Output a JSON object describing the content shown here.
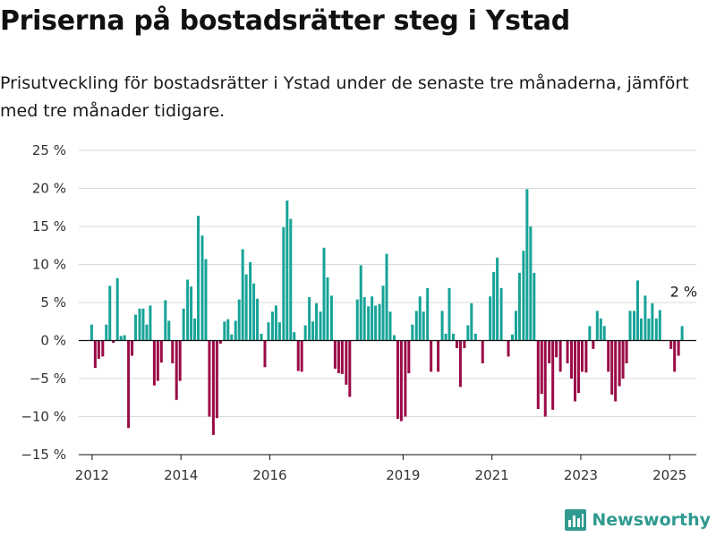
{
  "header": {
    "title": "Priserna på bostadsrätter steg i Ystad",
    "subtitle": "Prisutveckling för bostadsrätter i Ystad under de senaste tre månaderna, jämfört med tre månader tidigare."
  },
  "brand": {
    "name": "Newsworthy",
    "icon": "bar-chart-logo-icon",
    "color": "#2f9a8f"
  },
  "chart_data": {
    "type": "bar",
    "ylim": [
      -15,
      25
    ],
    "yticks": [
      -15,
      -10,
      -5,
      0,
      5,
      10,
      15,
      20,
      25
    ],
    "ytick_labels": [
      "−15 %",
      "−10 %",
      "−5 %",
      "0 %",
      "5 %",
      "10 %",
      "15 %",
      "20 %",
      "25 %"
    ],
    "xlim": [
      2011.7,
      2025.6
    ],
    "xticks": [
      2012,
      2014,
      2016,
      2019,
      2021,
      2023,
      2025
    ],
    "xtick_labels": [
      "2012",
      "2014",
      "2016",
      "2019",
      "2021",
      "2023",
      "2025"
    ],
    "grid": true,
    "colors": {
      "positive": "#17a398",
      "negative": "#9b0a47"
    },
    "annotation": {
      "text": "2 %",
      "x": 2025.33,
      "y": 2
    },
    "series": [
      {
        "values": [
          [
            2011.99,
            2.1
          ],
          [
            2012.07,
            -3.6
          ],
          [
            2012.15,
            -2.4
          ],
          [
            2012.24,
            -2.1
          ],
          [
            2012.32,
            2.1
          ],
          [
            2012.4,
            7.2
          ],
          [
            2012.48,
            -0.3
          ],
          [
            2012.57,
            8.2
          ],
          [
            2012.65,
            0.6
          ],
          [
            2012.73,
            0.7
          ],
          [
            2012.82,
            -11.5
          ],
          [
            2012.9,
            -2.0
          ],
          [
            2012.98,
            3.4
          ],
          [
            2013.07,
            4.2
          ],
          [
            2013.15,
            4.2
          ],
          [
            2013.23,
            2.1
          ],
          [
            2013.31,
            4.6
          ],
          [
            2013.4,
            -5.9
          ],
          [
            2013.48,
            -5.3
          ],
          [
            2013.56,
            -2.9
          ],
          [
            2013.65,
            5.3
          ],
          [
            2013.73,
            2.6
          ],
          [
            2013.81,
            -3.0
          ],
          [
            2013.9,
            -7.8
          ],
          [
            2013.98,
            -5.3
          ],
          [
            2014.06,
            4.2
          ],
          [
            2014.15,
            8.0
          ],
          [
            2014.23,
            7.1
          ],
          [
            2014.31,
            2.9
          ],
          [
            2014.39,
            16.4
          ],
          [
            2014.48,
            13.8
          ],
          [
            2014.56,
            10.7
          ],
          [
            2014.64,
            -10.0
          ],
          [
            2014.73,
            -12.4
          ],
          [
            2014.81,
            -10.2
          ],
          [
            2014.89,
            -0.4
          ],
          [
            2014.98,
            2.5
          ],
          [
            2015.06,
            2.8
          ],
          [
            2015.14,
            0.8
          ],
          [
            2015.23,
            2.6
          ],
          [
            2015.31,
            5.4
          ],
          [
            2015.39,
            12.0
          ],
          [
            2015.47,
            8.7
          ],
          [
            2015.56,
            10.3
          ],
          [
            2015.64,
            7.5
          ],
          [
            2015.72,
            5.5
          ],
          [
            2015.81,
            0.9
          ],
          [
            2015.89,
            -3.5
          ],
          [
            2015.97,
            2.4
          ],
          [
            2016.06,
            3.8
          ],
          [
            2016.14,
            4.6
          ],
          [
            2016.22,
            2.4
          ],
          [
            2016.31,
            14.9
          ],
          [
            2016.39,
            18.4
          ],
          [
            2016.47,
            16.0
          ],
          [
            2016.55,
            1.1
          ],
          [
            2016.64,
            -4.0
          ],
          [
            2016.72,
            -4.1
          ],
          [
            2016.8,
            2.0
          ],
          [
            2016.89,
            5.7
          ],
          [
            2016.97,
            2.5
          ],
          [
            2017.05,
            4.9
          ],
          [
            2017.14,
            3.8
          ],
          [
            2017.22,
            12.2
          ],
          [
            2017.3,
            8.3
          ],
          [
            2017.39,
            5.9
          ],
          [
            2017.47,
            -3.7
          ],
          [
            2017.55,
            -4.3
          ],
          [
            2017.63,
            -4.4
          ],
          [
            2017.72,
            -5.8
          ],
          [
            2017.8,
            -7.4
          ],
          [
            2017.88,
            0.0
          ],
          [
            2017.97,
            5.4
          ],
          [
            2018.05,
            9.9
          ],
          [
            2018.13,
            5.7
          ],
          [
            2018.22,
            4.5
          ],
          [
            2018.3,
            5.8
          ],
          [
            2018.38,
            4.6
          ],
          [
            2018.47,
            4.8
          ],
          [
            2018.55,
            7.2
          ],
          [
            2018.63,
            11.4
          ],
          [
            2018.71,
            3.8
          ],
          [
            2018.8,
            0.7
          ],
          [
            2018.88,
            -10.3
          ],
          [
            2018.96,
            -10.6
          ],
          [
            2019.05,
            -10.0
          ],
          [
            2019.13,
            -4.3
          ],
          [
            2019.21,
            2.1
          ],
          [
            2019.3,
            3.9
          ],
          [
            2019.38,
            5.8
          ],
          [
            2019.46,
            3.8
          ],
          [
            2019.55,
            6.9
          ],
          [
            2019.63,
            -4.1
          ],
          [
            2019.71,
            0.0
          ],
          [
            2019.79,
            -4.1
          ],
          [
            2019.88,
            3.9
          ],
          [
            2019.96,
            0.9
          ],
          [
            2020.04,
            6.9
          ],
          [
            2020.13,
            0.9
          ],
          [
            2020.21,
            -1.0
          ],
          [
            2020.29,
            -6.1
          ],
          [
            2020.38,
            -1.0
          ],
          [
            2020.46,
            2.0
          ],
          [
            2020.54,
            4.9
          ],
          [
            2020.63,
            0.9
          ],
          [
            2020.71,
            0.0
          ],
          [
            2020.79,
            -3.0
          ],
          [
            2020.87,
            0.0
          ],
          [
            2020.96,
            5.8
          ],
          [
            2021.04,
            9.0
          ],
          [
            2021.12,
            10.9
          ],
          [
            2021.21,
            6.9
          ],
          [
            2021.29,
            0.0
          ],
          [
            2021.37,
            -2.1
          ],
          [
            2021.46,
            0.8
          ],
          [
            2021.54,
            3.9
          ],
          [
            2021.62,
            8.9
          ],
          [
            2021.71,
            11.8
          ],
          [
            2021.79,
            19.9
          ],
          [
            2021.87,
            15.0
          ],
          [
            2021.95,
            8.9
          ],
          [
            2022.04,
            -9.0
          ],
          [
            2022.12,
            -7.0
          ],
          [
            2022.2,
            -10.0
          ],
          [
            2022.29,
            -3.0
          ],
          [
            2022.37,
            -9.1
          ],
          [
            2022.45,
            -2.2
          ],
          [
            2022.54,
            -4.1
          ],
          [
            2022.62,
            0.0
          ],
          [
            2022.7,
            -3.0
          ],
          [
            2022.79,
            -5.0
          ],
          [
            2022.87,
            -8.0
          ],
          [
            2022.95,
            -6.9
          ],
          [
            2023.03,
            -4.1
          ],
          [
            2023.12,
            -4.2
          ],
          [
            2023.2,
            1.9
          ],
          [
            2023.28,
            -1.1
          ],
          [
            2023.37,
            3.9
          ],
          [
            2023.45,
            2.9
          ],
          [
            2023.53,
            1.9
          ],
          [
            2023.62,
            -4.1
          ],
          [
            2023.7,
            -7.1
          ],
          [
            2023.78,
            -8.0
          ],
          [
            2023.87,
            -6.0
          ],
          [
            2023.95,
            -5.0
          ],
          [
            2024.03,
            -3.0
          ],
          [
            2024.11,
            3.9
          ],
          [
            2024.2,
            3.9
          ],
          [
            2024.28,
            7.9
          ],
          [
            2024.36,
            2.9
          ],
          [
            2024.45,
            5.9
          ],
          [
            2024.53,
            2.9
          ],
          [
            2024.61,
            4.9
          ],
          [
            2024.7,
            2.9
          ],
          [
            2024.78,
            4.0
          ],
          [
            2024.86,
            0.0
          ],
          [
            2024.95,
            0.0
          ],
          [
            2025.03,
            -1.1
          ],
          [
            2025.11,
            -4.1
          ],
          [
            2025.2,
            -2.0
          ],
          [
            2025.28,
            1.9
          ]
        ]
      }
    ]
  }
}
